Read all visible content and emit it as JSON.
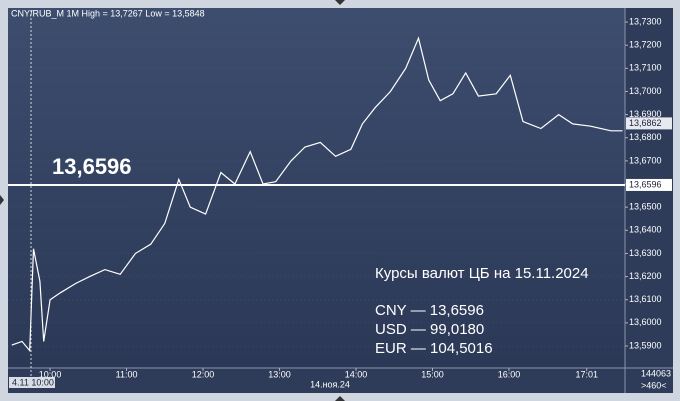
{
  "chart_data": {
    "type": "line",
    "title": "CNY/RUB_M 1M High = 13,7267 Low = 13,5848",
    "color": "#ffffff",
    "x": [
      "09:30",
      "09:38",
      "09:44",
      "09:47",
      "09:52",
      "09:55",
      "10:00",
      "10:08",
      "10:20",
      "10:31",
      "10:43",
      "10:55",
      "11:07",
      "11:19",
      "11:30",
      "11:41",
      "11:50",
      "12:02",
      "12:14",
      "12:25",
      "12:37",
      "12:47",
      "12:57",
      "13:09",
      "13:20",
      "13:32",
      "13:44",
      "13:56",
      "14:05",
      "14:15",
      "14:27",
      "14:39",
      "14:49",
      "14:57",
      "15:06",
      "15:16",
      "15:26",
      "15:36",
      "15:50",
      "16:01",
      "16:11",
      "16:25",
      "16:39",
      "16:50",
      "17:04",
      "17:20",
      "17:29"
    ],
    "values": [
      13.5904,
      13.592,
      13.588,
      13.632,
      13.618,
      13.592,
      13.61,
      13.613,
      13.617,
      13.62,
      13.623,
      13.621,
      13.63,
      13.634,
      13.643,
      13.662,
      13.65,
      13.647,
      13.665,
      13.66,
      13.674,
      13.66,
      13.661,
      13.67,
      13.676,
      13.678,
      13.672,
      13.675,
      13.686,
      13.693,
      13.7,
      13.71,
      13.723,
      13.705,
      13.696,
      13.699,
      13.708,
      13.698,
      13.699,
      13.707,
      13.687,
      13.684,
      13.69,
      13.686,
      13.685,
      13.683,
      13.683
    ],
    "xlim": [
      "09:27",
      "17:31"
    ],
    "xticks": [
      "10:00",
      "11:00",
      "12:00",
      "13:00",
      "14:00",
      "15:00",
      "16:00",
      "17:01"
    ],
    "ylim": [
      13.5805,
      13.7352
    ],
    "yticks": [
      {
        "value": 13.59,
        "label": "13,5900"
      },
      {
        "value": 13.6,
        "label": "13,6000"
      },
      {
        "value": 13.61,
        "label": "13,6100"
      },
      {
        "value": 13.62,
        "label": "13,6200"
      },
      {
        "value": 13.63,
        "label": "13,6300"
      },
      {
        "value": 13.64,
        "label": "13,6400"
      },
      {
        "value": 13.65,
        "label": "13,6500"
      },
      {
        "value": 13.66,
        "label": "13,6600"
      },
      {
        "value": 13.67,
        "label": "13,6700"
      },
      {
        "value": 13.68,
        "label": "13,6800"
      },
      {
        "value": 13.69,
        "label": "13,6900"
      },
      {
        "value": 13.7,
        "label": "13,7000"
      },
      {
        "value": 13.71,
        "label": "13,7100"
      },
      {
        "value": 13.72,
        "label": "13,7200"
      },
      {
        "value": 13.73,
        "label": "13,7300"
      }
    ],
    "level": {
      "value": 13.6596,
      "label": "13,6596"
    },
    "last_price": {
      "value": 13.6862,
      "label": "13,6862"
    },
    "cursor_label": "4.11 10:00",
    "date_label": "14.ноя.24",
    "corner_top": "144063",
    "corner_bottom": ">460<",
    "annotation": {
      "title": "Курсы валют ЦБ на 15.11.2024",
      "lines": [
        "CNY — 13,6596",
        "USD — 99,0180",
        "EUR — 104,5016"
      ]
    }
  }
}
